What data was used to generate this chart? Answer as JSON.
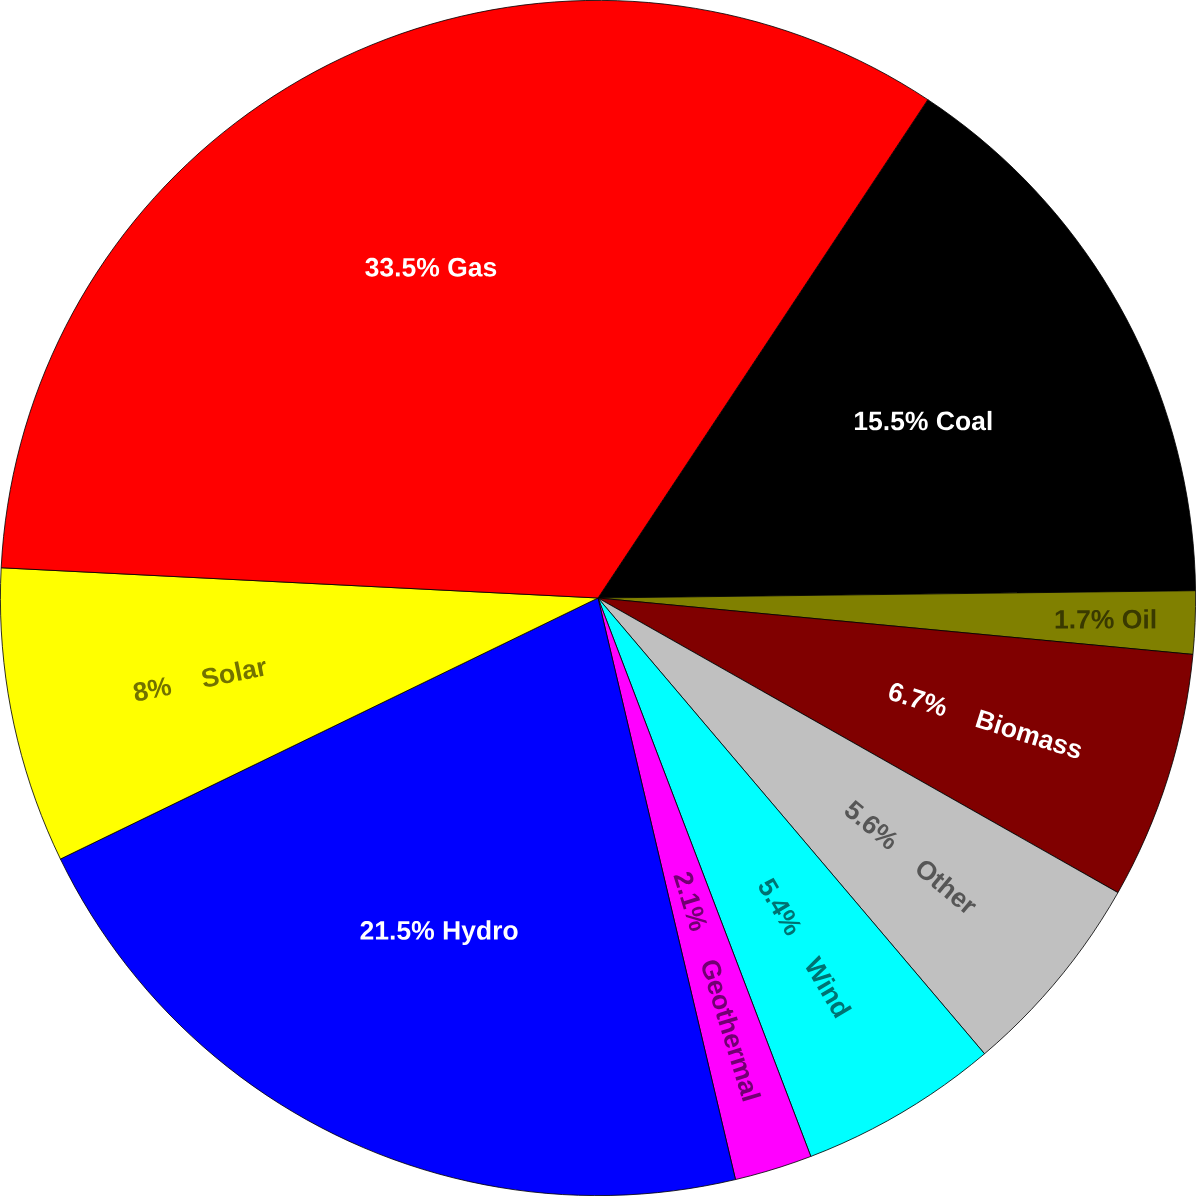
{
  "chart_data": {
    "type": "pie",
    "categories": [
      "Coal",
      "Oil",
      "Biomass",
      "Other",
      "Wind",
      "Geothermal",
      "Hydro",
      "Solar",
      "Gas"
    ],
    "values": [
      15.5,
      1.7,
      6.7,
      5.6,
      5.4,
      2.1,
      21.5,
      8,
      33.5
    ],
    "value_labels": [
      "15.5%",
      "1.7%",
      "6.7%",
      "5.6%",
      "5.4%",
      "2.1%",
      "21.5%",
      "8%",
      "33.5%"
    ],
    "colors": [
      "#000000",
      "#808000",
      "#800000",
      "#c0c0c0",
      "#00ffff",
      "#ff00ff",
      "#0000ff",
      "#ffff00",
      "#ff0000"
    ]
  }
}
